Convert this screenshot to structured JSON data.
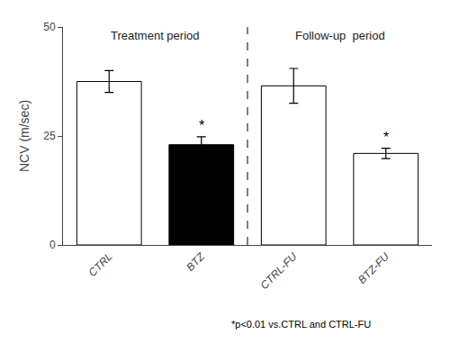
{
  "chart_data": {
    "type": "bar",
    "categories": [
      "CTRL",
      "BTZ",
      "CTRL-FU",
      "BTZ-FU"
    ],
    "values": [
      37.5,
      23.0,
      36.5,
      21.0
    ],
    "errors": [
      2.5,
      1.8,
      4.0,
      1.2
    ],
    "colors": [
      "white",
      "black",
      "white",
      "white"
    ],
    "ylabel": "NCV (m/sec)",
    "ylim": [
      0,
      50
    ],
    "yticks": [
      0,
      25,
      50
    ],
    "grid": false,
    "annotations": [
      {
        "text": "Treatment period",
        "categories": [
          "CTRL",
          "BTZ"
        ]
      },
      {
        "text": "Follow-up  period",
        "categories": [
          "CTRL-FU",
          "BTZ-FU"
        ]
      },
      {
        "text": "*",
        "category": "BTZ"
      },
      {
        "text": "*",
        "category": "BTZ-FU"
      }
    ],
    "footnote": "*p<0.01 vs.CTRL and CTRL-FU"
  }
}
